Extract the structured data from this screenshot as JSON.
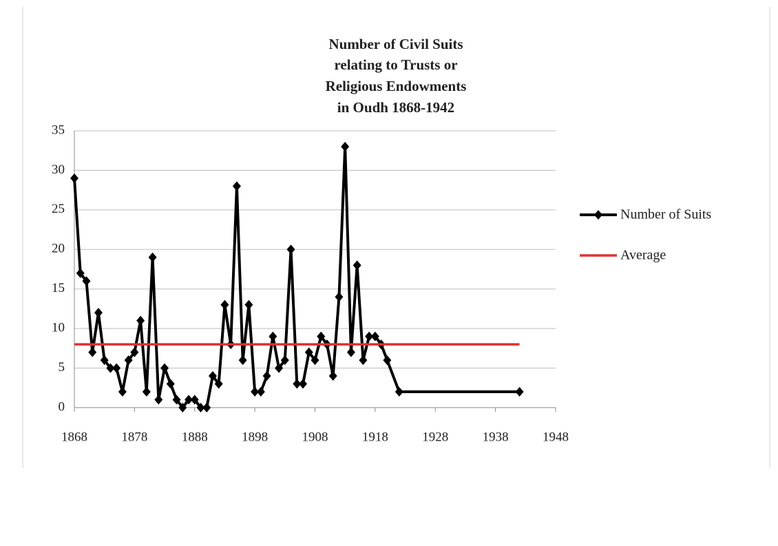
{
  "chart_data": {
    "type": "line",
    "title": [
      "Number of Civil Suits",
      "relating to Trusts or",
      "Religious Endowments",
      "in Oudh 1868-1942"
    ],
    "x": [
      1868,
      1869,
      1870,
      1871,
      1872,
      1873,
      1874,
      1875,
      1876,
      1877,
      1878,
      1879,
      1880,
      1881,
      1882,
      1883,
      1884,
      1885,
      1886,
      1887,
      1888,
      1889,
      1890,
      1891,
      1892,
      1893,
      1894,
      1895,
      1896,
      1897,
      1898,
      1899,
      1900,
      1901,
      1902,
      1903,
      1904,
      1905,
      1906,
      1907,
      1908,
      1909,
      1910,
      1911,
      1912,
      1913,
      1914,
      1915,
      1916,
      1917,
      1918,
      1919,
      1920,
      1922,
      1942
    ],
    "series": [
      {
        "name": "Number of Suits",
        "color": "#000000",
        "values": [
          29,
          17,
          16,
          7,
          12,
          6,
          5,
          5,
          2,
          6,
          7,
          11,
          2,
          19,
          1,
          5,
          3,
          1,
          0,
          1,
          1,
          0,
          0,
          4,
          3,
          13,
          8,
          28,
          6,
          13,
          2,
          2,
          4,
          9,
          5,
          6,
          20,
          3,
          3,
          7,
          6,
          9,
          8,
          4,
          14,
          33,
          7,
          18,
          6,
          9,
          9,
          8,
          6,
          2,
          2
        ]
      },
      {
        "name": "Average",
        "color": "#e03030",
        "x": [
          1868,
          1942
        ],
        "values": [
          8,
          8
        ]
      }
    ],
    "xlim": [
      1868,
      1948
    ],
    "xticks": [
      1868,
      1878,
      1888,
      1898,
      1908,
      1918,
      1928,
      1938,
      1948
    ],
    "ylim": [
      0,
      35
    ],
    "yticks": [
      0,
      5,
      10,
      15,
      20,
      25,
      30,
      35
    ],
    "grid": true,
    "legend": "right"
  }
}
